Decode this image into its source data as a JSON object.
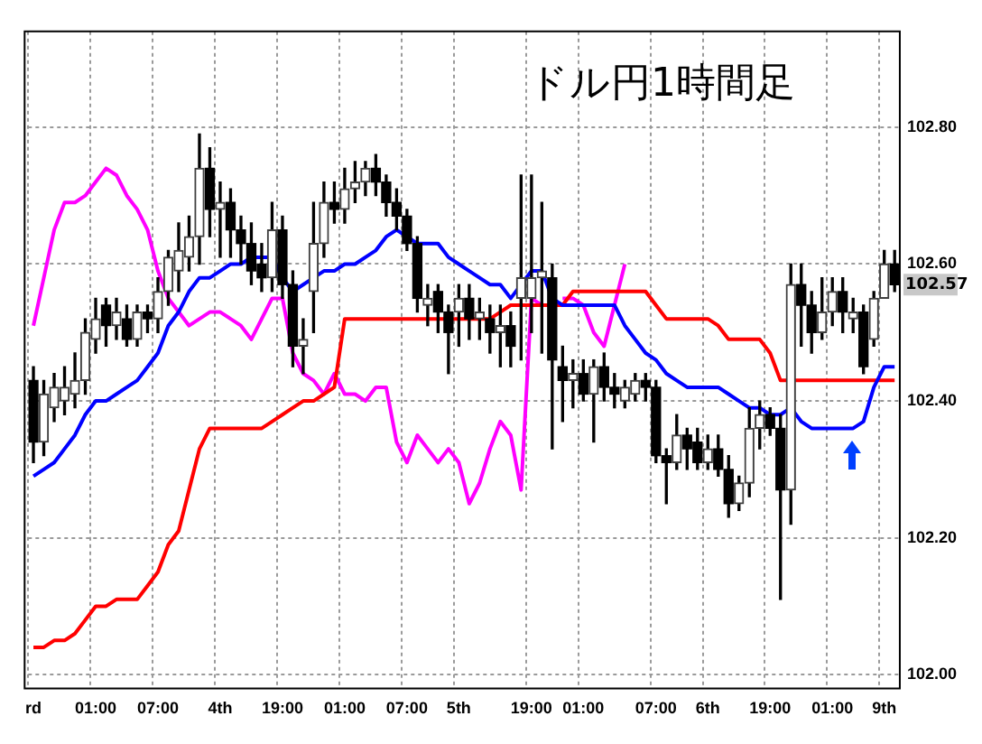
{
  "chart_data": {
    "type": "candlestick",
    "title": "ドル円1時間足",
    "categories": [
      "rd",
      null,
      null,
      null,
      null,
      null,
      "01:00",
      null,
      null,
      null,
      null,
      null,
      "07:00",
      null,
      null,
      null,
      null,
      null,
      "4th",
      null,
      null,
      null,
      null,
      null,
      "19:00",
      null,
      null,
      null,
      null,
      null,
      "01:00",
      null,
      null,
      null,
      null,
      null,
      "07:00",
      null,
      null,
      null,
      null,
      "5th",
      null,
      null,
      null,
      null,
      null,
      null,
      "19:00",
      null,
      null,
      null,
      null,
      "01:00",
      null,
      null,
      null,
      null,
      null,
      null,
      "07:00",
      null,
      null,
      null,
      null,
      "6th",
      null,
      null,
      null,
      null,
      null,
      "19:00",
      null,
      null,
      null,
      null,
      null,
      "01:00",
      null,
      null,
      null,
      null,
      "9th",
      null
    ],
    "ohlc": [
      [
        102.43,
        102.45,
        102.31,
        102.34
      ],
      [
        102.34,
        102.43,
        102.32,
        102.41
      ],
      [
        102.39,
        102.44,
        102.37,
        102.42
      ],
      [
        102.4,
        102.45,
        102.38,
        102.42
      ],
      [
        102.41,
        102.47,
        102.39,
        102.43
      ],
      [
        102.43,
        102.52,
        102.41,
        102.5
      ],
      [
        102.49,
        102.55,
        102.47,
        102.52
      ],
      [
        102.54,
        102.55,
        102.48,
        102.51
      ],
      [
        102.51,
        102.55,
        102.49,
        102.53
      ],
      [
        102.52,
        102.54,
        102.48,
        102.49
      ],
      [
        102.49,
        102.54,
        102.48,
        102.53
      ],
      [
        102.53,
        102.54,
        102.5,
        102.52
      ],
      [
        102.52,
        102.58,
        102.5,
        102.56
      ],
      [
        102.56,
        102.62,
        102.54,
        102.61
      ],
      [
        102.59,
        102.66,
        102.56,
        102.62
      ],
      [
        102.61,
        102.67,
        102.59,
        102.64
      ],
      [
        102.64,
        102.79,
        102.6,
        102.74
      ],
      [
        102.74,
        102.77,
        102.64,
        102.68
      ],
      [
        102.68,
        102.72,
        102.61,
        102.69
      ],
      [
        102.69,
        102.71,
        102.61,
        102.65
      ],
      [
        102.65,
        102.67,
        102.6,
        102.63
      ],
      [
        102.63,
        102.66,
        102.57,
        102.59
      ],
      [
        102.6,
        102.63,
        102.56,
        102.58
      ],
      [
        102.58,
        102.69,
        102.56,
        102.65
      ],
      [
        102.65,
        102.67,
        102.55,
        102.57
      ],
      [
        102.57,
        102.59,
        102.45,
        102.48
      ],
      [
        102.48,
        102.52,
        102.44,
        102.49
      ],
      [
        102.56,
        102.69,
        102.5,
        102.63
      ],
      [
        102.63,
        102.72,
        102.61,
        102.69
      ],
      [
        102.69,
        102.72,
        102.66,
        102.68
      ],
      [
        102.68,
        102.74,
        102.66,
        102.71
      ],
      [
        102.71,
        102.75,
        102.69,
        102.72
      ],
      [
        102.72,
        102.75,
        102.7,
        102.74
      ],
      [
        102.74,
        102.76,
        102.7,
        102.72
      ],
      [
        102.72,
        102.73,
        102.67,
        102.69
      ],
      [
        102.69,
        102.71,
        102.65,
        102.67
      ],
      [
        102.67,
        102.68,
        102.62,
        102.63
      ],
      [
        102.63,
        102.64,
        102.53,
        102.55
      ],
      [
        102.54,
        102.57,
        102.51,
        102.55
      ],
      [
        102.56,
        102.57,
        102.5,
        102.53
      ],
      [
        102.53,
        102.54,
        102.44,
        102.5
      ],
      [
        102.53,
        102.57,
        102.48,
        102.55
      ],
      [
        102.55,
        102.57,
        102.49,
        102.52
      ],
      [
        102.52,
        102.55,
        102.49,
        102.53
      ],
      [
        102.52,
        102.54,
        102.47,
        102.5
      ],
      [
        102.5,
        102.54,
        102.45,
        102.51
      ],
      [
        102.51,
        102.53,
        102.45,
        102.48
      ],
      [
        102.55,
        102.73,
        102.46,
        102.58
      ],
      [
        102.55,
        102.73,
        102.5,
        102.58
      ],
      [
        102.58,
        102.69,
        102.47,
        102.59
      ],
      [
        102.58,
        102.6,
        102.33,
        102.46
      ],
      [
        102.45,
        102.48,
        102.37,
        102.43
      ],
      [
        102.43,
        102.46,
        102.39,
        102.44
      ],
      [
        102.44,
        102.46,
        102.4,
        102.41
      ],
      [
        102.41,
        102.46,
        102.34,
        102.45
      ],
      [
        102.45,
        102.47,
        102.4,
        102.42
      ],
      [
        102.42,
        102.44,
        102.39,
        102.41
      ],
      [
        102.4,
        102.43,
        102.39,
        102.42
      ],
      [
        102.41,
        102.44,
        102.4,
        102.43
      ],
      [
        102.43,
        102.44,
        102.4,
        102.42
      ],
      [
        102.42,
        102.43,
        102.31,
        102.32
      ],
      [
        102.32,
        102.33,
        102.25,
        102.31
      ],
      [
        102.31,
        102.38,
        102.3,
        102.35
      ],
      [
        102.35,
        102.36,
        102.3,
        102.33
      ],
      [
        102.34,
        102.36,
        102.3,
        102.31
      ],
      [
        102.31,
        102.35,
        102.3,
        102.33
      ],
      [
        102.33,
        102.35,
        102.29,
        102.3
      ],
      [
        102.3,
        102.32,
        102.23,
        102.25
      ],
      [
        102.25,
        102.29,
        102.24,
        102.28
      ],
      [
        102.28,
        102.39,
        102.26,
        102.36
      ],
      [
        102.36,
        102.4,
        102.33,
        102.38
      ],
      [
        102.38,
        102.39,
        102.35,
        102.36
      ],
      [
        102.36,
        102.38,
        102.11,
        102.27
      ],
      [
        102.27,
        102.6,
        102.22,
        102.57
      ],
      [
        102.57,
        102.6,
        102.48,
        102.54
      ],
      [
        102.54,
        102.56,
        102.47,
        102.5
      ],
      [
        102.5,
        102.58,
        102.49,
        102.53
      ],
      [
        102.53,
        102.58,
        102.51,
        102.56
      ],
      [
        102.56,
        102.58,
        102.5,
        102.53
      ],
      [
        102.52,
        102.55,
        102.5,
        102.53
      ],
      [
        102.53,
        102.54,
        102.44,
        102.45
      ],
      [
        102.49,
        102.56,
        102.48,
        102.55
      ],
      [
        102.55,
        102.62,
        102.55,
        102.6
      ],
      [
        102.6,
        102.62,
        102.56,
        102.57
      ]
    ],
    "series": [
      {
        "type": "line",
        "color": "#0000ff",
        "values": [
          102.29,
          102.3,
          102.31,
          102.33,
          102.35,
          102.38,
          102.4,
          102.4,
          102.41,
          102.42,
          102.43,
          102.45,
          102.47,
          102.51,
          102.53,
          102.56,
          102.58,
          102.58,
          102.59,
          102.6,
          102.6,
          102.61,
          102.61,
          102.61,
          102.58,
          102.56,
          102.57,
          102.58,
          102.59,
          102.59,
          102.6,
          102.6,
          102.61,
          102.62,
          102.64,
          102.65,
          102.64,
          102.63,
          102.63,
          102.63,
          102.61,
          102.6,
          102.59,
          102.58,
          102.57,
          102.57,
          102.55,
          102.57,
          102.59,
          102.59,
          102.55,
          102.54,
          102.54,
          102.54,
          102.54,
          102.54,
          102.54,
          102.51,
          102.49,
          102.47,
          102.46,
          102.44,
          102.43,
          102.42,
          102.42,
          102.42,
          102.42,
          102.41,
          102.4,
          102.39,
          102.39,
          102.38,
          102.38,
          102.39,
          102.37,
          102.36,
          102.36,
          102.36,
          102.36,
          102.36,
          102.37,
          102.42,
          102.45,
          102.45
        ]
      },
      {
        "type": "line",
        "color": "#ff0000",
        "values": [
          102.04,
          102.04,
          102.05,
          102.05,
          102.06,
          102.08,
          102.1,
          102.1,
          102.11,
          102.11,
          102.11,
          102.13,
          102.15,
          102.19,
          102.21,
          102.27,
          102.33,
          102.36,
          102.36,
          102.36,
          102.36,
          102.36,
          102.36,
          102.37,
          102.38,
          102.39,
          102.4,
          102.4,
          102.41,
          102.42,
          102.52,
          102.52,
          102.52,
          102.52,
          102.52,
          102.52,
          102.52,
          102.52,
          102.52,
          102.52,
          102.52,
          102.52,
          102.52,
          102.52,
          102.52,
          102.53,
          102.54,
          102.54,
          102.54,
          102.54,
          102.54,
          102.54,
          102.56,
          102.56,
          102.56,
          102.56,
          102.56,
          102.56,
          102.56,
          102.56,
          102.54,
          102.52,
          102.52,
          102.52,
          102.52,
          102.52,
          102.51,
          102.49,
          102.49,
          102.49,
          102.49,
          102.47,
          102.43,
          102.43,
          102.43,
          102.43,
          102.43,
          102.43,
          102.43,
          102.43,
          102.43,
          102.43,
          102.43,
          102.43
        ]
      },
      {
        "type": "line",
        "color": "#ff00ff",
        "values": [
          102.51,
          102.58,
          102.65,
          102.69,
          102.69,
          102.7,
          102.72,
          102.74,
          102.73,
          102.7,
          102.68,
          102.65,
          102.59,
          102.55,
          102.53,
          102.51,
          102.52,
          102.53,
          102.53,
          102.52,
          102.51,
          102.49,
          102.52,
          102.55,
          102.55,
          102.47,
          102.44,
          102.43,
          102.41,
          102.44,
          102.41,
          102.41,
          102.4,
          102.42,
          102.42,
          102.34,
          102.31,
          102.35,
          102.33,
          102.31,
          102.33,
          102.31,
          102.25,
          102.28,
          102.33,
          102.37,
          102.35,
          102.27,
          102.55,
          102.54,
          null,
          102.55,
          102.55,
          102.54,
          102.5,
          102.48,
          102.54,
          102.6,
          null,
          null,
          null,
          null,
          null,
          null,
          null,
          null,
          null,
          null,
          null,
          null,
          null,
          null,
          null,
          null,
          null,
          null,
          null,
          null,
          null,
          null,
          null,
          null,
          null,
          null
        ]
      }
    ],
    "ylim": [
      101.98,
      102.94
    ],
    "yticks": [
      {
        "value": 102.0,
        "label": "102.00"
      },
      {
        "value": 102.2,
        "label": "102.20"
      },
      {
        "value": 102.4,
        "label": "102.40"
      },
      {
        "value": 102.6,
        "label": "102.60"
      },
      {
        "value": 102.8,
        "label": "102.80"
      }
    ],
    "annotations": [
      "102.57"
    ],
    "grid": true,
    "legend": false
  }
}
